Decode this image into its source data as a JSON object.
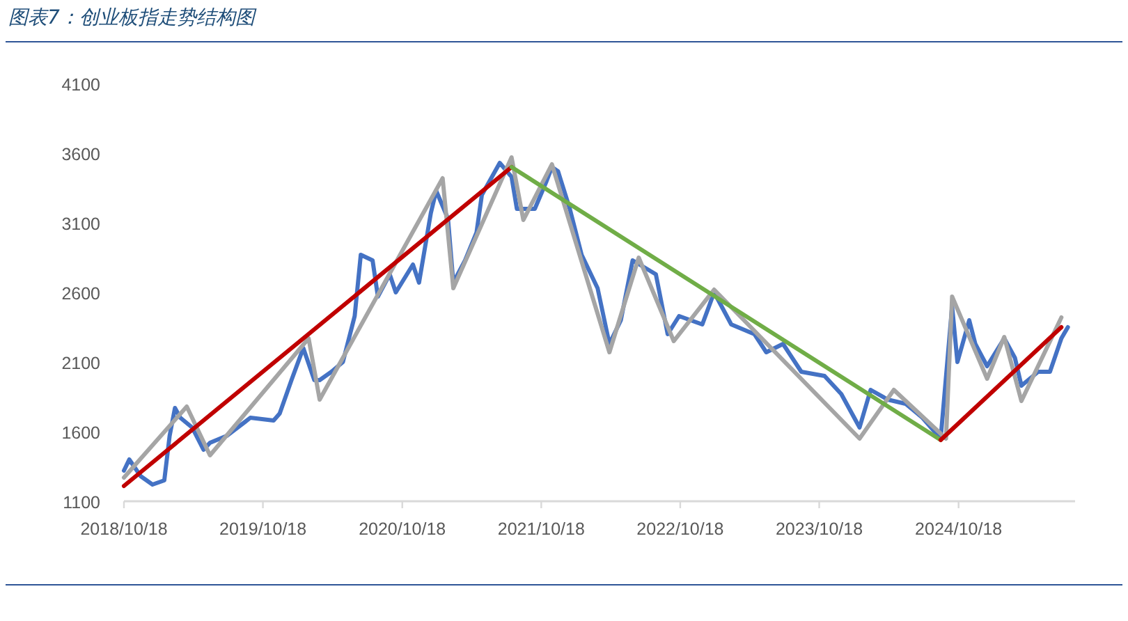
{
  "chart_data": {
    "type": "line",
    "title": "图表7：创业板指走势结构图",
    "xlim": [
      "2018-10-18",
      "2025-08-20"
    ],
    "ylim": [
      1100,
      4100
    ],
    "xticks": [
      {
        "value": "2018-10-18",
        "label": "2018/10/18"
      },
      {
        "value": "2019-10-18",
        "label": "2019/10/18"
      },
      {
        "value": "2020-10-18",
        "label": "2020/10/18"
      },
      {
        "value": "2021-10-18",
        "label": "2021/10/18"
      },
      {
        "value": "2022-10-18",
        "label": "2022/10/18"
      },
      {
        "value": "2023-10-18",
        "label": "2023/10/18"
      },
      {
        "value": "2024-10-18",
        "label": "2024/10/18"
      }
    ],
    "yticks": [
      1100,
      1600,
      2100,
      2600,
      3100,
      3600,
      4100
    ],
    "series": [
      {
        "color": "#4472c4",
        "x": [
          "2018-10-18",
          "2018-11-01",
          "2018-12-01",
          "2019-01-01",
          "2019-02-01",
          "2019-02-15",
          "2019-03-01",
          "2019-03-15",
          "2019-04-15",
          "2019-05-15",
          "2019-06-01",
          "2019-07-15",
          "2019-09-01",
          "2019-09-15",
          "2019-11-15",
          "2019-12-01",
          "2020-01-01",
          "2020-02-01",
          "2020-03-01",
          "2020-03-15",
          "2020-04-15",
          "2020-05-15",
          "2020-06-15",
          "2020-07-01",
          "2020-08-01",
          "2020-08-15",
          "2020-09-15",
          "2020-10-01",
          "2020-11-15",
          "2020-12-01",
          "2021-01-01",
          "2021-01-15",
          "2021-02-15",
          "2021-03-01",
          "2021-04-01",
          "2021-05-01",
          "2021-05-15",
          "2021-07-01",
          "2021-08-01",
          "2021-08-15",
          "2021-10-01",
          "2021-11-01",
          "2021-11-15",
          "2021-12-01",
          "2022-01-01",
          "2022-02-01",
          "2022-03-15",
          "2022-04-15",
          "2022-05-15",
          "2022-06-15",
          "2022-08-15",
          "2022-09-15",
          "2022-10-15",
          "2022-12-15",
          "2023-01-15",
          "2023-03-01",
          "2023-05-01",
          "2023-06-01",
          "2023-07-15",
          "2023-09-01",
          "2023-11-01",
          "2023-12-15",
          "2024-02-01",
          "2024-03-01",
          "2024-04-15",
          "2024-06-01",
          "2024-07-15",
          "2024-09-01",
          "2024-10-01",
          "2024-10-15",
          "2024-11-15",
          "2024-12-01",
          "2025-01-01",
          "2025-02-15",
          "2025-03-15",
          "2025-04-01",
          "2025-05-15",
          "2025-06-15",
          "2025-07-15",
          "2025-08-01"
        ],
        "values": [
          1320,
          1400,
          1280,
          1220,
          1250,
          1570,
          1770,
          1700,
          1630,
          1470,
          1520,
          1570,
          1670,
          1700,
          1680,
          1730,
          1970,
          2200,
          1970,
          1970,
          2030,
          2100,
          2430,
          2870,
          2830,
          2570,
          2730,
          2600,
          2800,
          2670,
          3170,
          3330,
          3130,
          2670,
          2830,
          3030,
          3300,
          3530,
          3430,
          3200,
          3200,
          3400,
          3500,
          3470,
          3200,
          2870,
          2630,
          2230,
          2400,
          2830,
          2730,
          2300,
          2430,
          2370,
          2600,
          2370,
          2300,
          2170,
          2230,
          2030,
          2000,
          1870,
          1630,
          1900,
          1830,
          1800,
          1700,
          1550,
          2500,
          2100,
          2400,
          2230,
          2070,
          2270,
          2130,
          1930,
          2030,
          2030,
          2270,
          2350
        ]
      },
      {
        "color": "#a5a5a5",
        "x": [
          "2018-10-18",
          "2019-04-01",
          "2019-06-01",
          "2020-02-15",
          "2020-03-15",
          "2021-02-01",
          "2021-03-01",
          "2021-08-01",
          "2021-09-01",
          "2021-11-15",
          "2022-04-15",
          "2022-07-01",
          "2022-10-01",
          "2023-01-15",
          "2024-02-01",
          "2024-05-01",
          "2024-09-15",
          "2024-10-01",
          "2025-01-01",
          "2025-02-15",
          "2025-04-01",
          "2025-07-15"
        ],
        "values": [
          1270,
          1780,
          1430,
          2270,
          1830,
          3420,
          2630,
          3570,
          3120,
          3520,
          2170,
          2850,
          2250,
          2620,
          1550,
          1900,
          1550,
          2570,
          1980,
          2280,
          1820,
          2420
        ]
      },
      {
        "color": "#c00000",
        "x": [
          "2018-10-18",
          "2021-08-01"
        ],
        "values": [
          1210,
          3500
        ]
      },
      {
        "color": "#70ad47",
        "x": [
          "2021-08-01",
          "2024-09-01"
        ],
        "values": [
          3500,
          1540
        ]
      },
      {
        "color": "#c00000",
        "x": [
          "2024-09-01",
          "2025-07-15"
        ],
        "values": [
          1540,
          2350
        ]
      }
    ]
  }
}
